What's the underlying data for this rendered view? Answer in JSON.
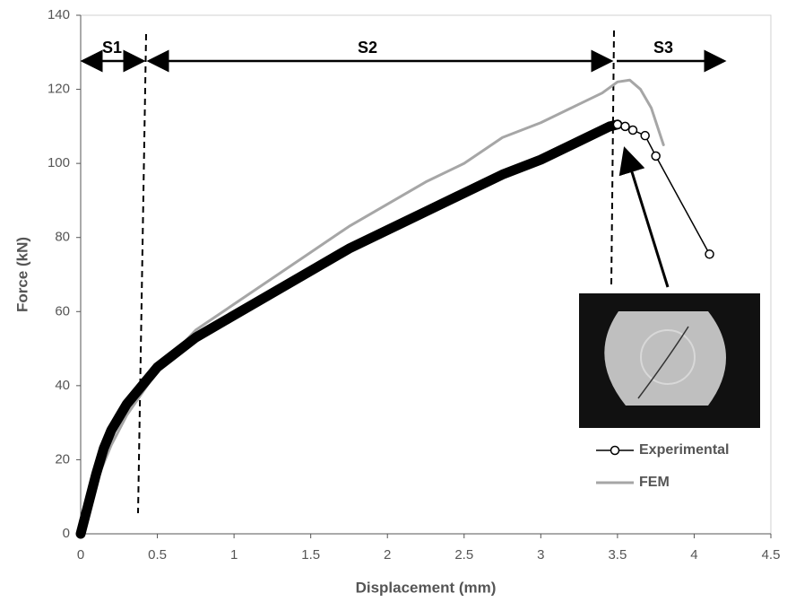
{
  "chart_data": {
    "type": "line",
    "xlabel": "Displacement (mm)",
    "ylabel": "Force (kN)",
    "xlim": [
      0,
      4.5
    ],
    "xticks": [
      0,
      0.5,
      1,
      1.5,
      2,
      2.5,
      3,
      3.5,
      4,
      4.5
    ],
    "ylim": [
      0,
      140
    ],
    "yticks": [
      0,
      20,
      40,
      60,
      80,
      100,
      120,
      140
    ],
    "grid": false,
    "legend": "lower right",
    "annotations": [
      "S1",
      "S2",
      "S3"
    ],
    "series": [
      {
        "name": "Experimental",
        "color": "#000000",
        "marker": "o",
        "x": [
          0,
          0.05,
          0.1,
          0.15,
          0.2,
          0.3,
          0.4,
          0.5,
          0.75,
          1,
          1.25,
          1.5,
          1.75,
          2,
          2.25,
          2.5,
          2.75,
          3,
          3.25,
          3.45,
          3.5,
          3.55,
          3.6,
          3.68,
          3.75,
          4.1
        ],
        "values": [
          0,
          8,
          16,
          23,
          28,
          35,
          40,
          45,
          53,
          59,
          65,
          71,
          77,
          82,
          87,
          92,
          97,
          101,
          106,
          110,
          110.5,
          110,
          109,
          107.5,
          102,
          75.5
        ]
      },
      {
        "name": "FEM",
        "color": "#a6a6a6",
        "x": [
          0,
          0.05,
          0.1,
          0.2,
          0.3,
          0.4,
          0.5,
          0.75,
          1,
          1.25,
          1.5,
          1.75,
          2,
          2.25,
          2.5,
          2.75,
          3,
          3.25,
          3.4,
          3.5,
          3.58,
          3.65,
          3.72,
          3.8
        ],
        "values": [
          0,
          6,
          14,
          24,
          32,
          38,
          44,
          55,
          62,
          69,
          76,
          83,
          89,
          95,
          100,
          107,
          111,
          116,
          119,
          122,
          122.5,
          120,
          115,
          105
        ]
      }
    ]
  }
}
